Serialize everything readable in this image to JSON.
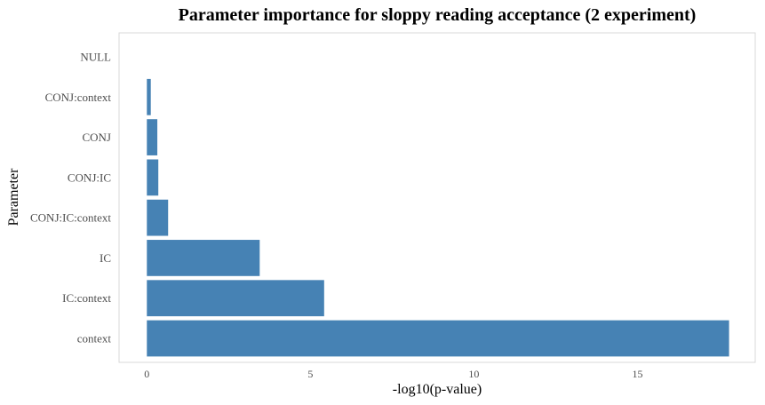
{
  "chart_data": {
    "type": "bar",
    "orientation": "horizontal",
    "title": "Parameter importance for sloppy reading acceptance (2 experiment)",
    "xlabel": "-log10(p-value)",
    "ylabel": "Parameter",
    "categories": [
      "NULL",
      "CONJ:context",
      "CONJ",
      "CONJ:IC",
      "CONJ:IC:context",
      "IC",
      "IC:context",
      "context"
    ],
    "values": [
      0,
      0.12,
      0.32,
      0.35,
      0.65,
      3.45,
      5.42,
      17.8
    ],
    "xlim": [
      -0.85,
      18.6
    ],
    "xticks": [
      0,
      5,
      10,
      15
    ],
    "xtick_labels": [
      "0",
      "5",
      "10",
      "15"
    ],
    "grid": false,
    "legend": "none",
    "bar_color": "#4682b4",
    "panel_border_color": "#d9d9d9"
  }
}
